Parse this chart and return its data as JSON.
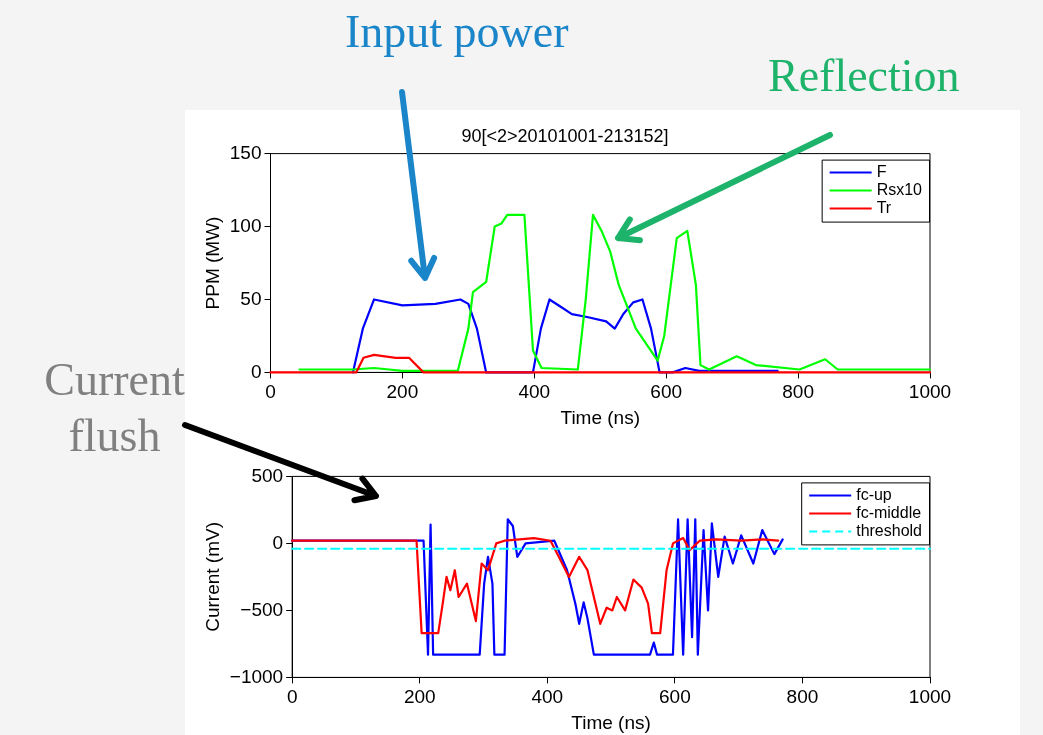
{
  "chart_data": [
    {
      "type": "line",
      "title": "90[<2>20101001-213152]",
      "xlabel": "Time (ns)",
      "ylabel": "PPM (MW)",
      "xlim": [
        0,
        1000
      ],
      "xticks": [
        0,
        200,
        400,
        600,
        800,
        1000
      ],
      "ylim": [
        0,
        150
      ],
      "yticks": [
        0,
        50,
        100,
        150
      ],
      "legend": "top right",
      "grid": false,
      "marker": "none",
      "line_style": "solid",
      "annotations": [
        "Input power",
        "Reflection"
      ],
      "series": [
        {
          "name": "F",
          "color": "#0000ff",
          "x": [
            125,
            140,
            157,
            200,
            250,
            288,
            300,
            313,
            327,
            398,
            410,
            423,
            440,
            457,
            480,
            509,
            522,
            535,
            550,
            564,
            577,
            590,
            610,
            629,
            650,
            700,
            769
          ],
          "values": [
            0,
            30,
            50,
            46,
            47,
            50,
            47,
            30,
            0,
            0,
            30,
            50,
            45,
            40,
            38,
            35,
            30,
            40,
            48,
            50,
            30,
            0,
            0,
            3,
            1,
            1,
            1
          ]
        },
        {
          "name": "Rsx10",
          "color": "#00ff00",
          "x": [
            44,
            125,
            157,
            180,
            200,
            284,
            300,
            307,
            327,
            340,
            350,
            359,
            385,
            398,
            411,
            466,
            478,
            489,
            502,
            515,
            528,
            554,
            587,
            597,
            616,
            632,
            645,
            652,
            665,
            707,
            736,
            802,
            841,
            860,
            1000
          ],
          "values": [
            2,
            2,
            3,
            2,
            1,
            1,
            30,
            55,
            62,
            100,
            102,
            108,
            108,
            15,
            3,
            2,
            50,
            108,
            97,
            83,
            60,
            30,
            8,
            25,
            92,
            97,
            60,
            5,
            2,
            11,
            5,
            2,
            9,
            2,
            2
          ]
        },
        {
          "name": "Tr",
          "color": "#ff0000",
          "x": [
            0,
            130,
            141,
            157,
            190,
            210,
            232,
            1000
          ],
          "values": [
            0,
            0,
            10,
            12,
            10,
            10,
            0,
            0
          ]
        }
      ]
    },
    {
      "type": "line",
      "xlabel": "Time (ns)",
      "ylabel": "Current (mV)",
      "xlim": [
        0,
        1000
      ],
      "xticks": [
        0,
        200,
        400,
        600,
        800,
        1000
      ],
      "ylim": [
        -1000,
        500
      ],
      "yticks": [
        -1000,
        -500,
        0,
        500
      ],
      "legend": "top right",
      "grid": false,
      "marker": "none",
      "line_style": "solid",
      "annotations": [
        "Current flush"
      ],
      "series": [
        {
          "name": "fc-up",
          "color": "#0000ff",
          "x": [
            0,
            206,
            213,
            217,
            221,
            294,
            301,
            307,
            314,
            317,
            333,
            338,
            346,
            353,
            366,
            411,
            431,
            444,
            450,
            457,
            463,
            473,
            561,
            567,
            572,
            597,
            605,
            613,
            620,
            627,
            632,
            636,
            645,
            652,
            658,
            668,
            678,
            691,
            704,
            723,
            737,
            756,
            769
          ],
          "values": [
            20,
            20,
            -830,
            140,
            -830,
            -830,
            -300,
            -100,
            -300,
            -830,
            -830,
            180,
            130,
            -100,
            0,
            20,
            -200,
            -450,
            -600,
            -440,
            -560,
            -830,
            -830,
            -740,
            -830,
            -830,
            180,
            -830,
            180,
            -700,
            180,
            -830,
            100,
            -500,
            150,
            -250,
            50,
            -150,
            60,
            -150,
            100,
            -80,
            30
          ]
        },
        {
          "name": "fc-middle",
          "color": "#ff0000",
          "x": [
            0,
            195,
            203,
            229,
            236,
            242,
            248,
            255,
            261,
            274,
            288,
            297,
            307,
            320,
            333,
            379,
            405,
            418,
            434,
            450,
            463,
            483,
            493,
            502,
            509,
            522,
            535,
            548,
            558,
            564,
            577,
            587,
            597,
            613,
            623,
            639,
            665,
            704,
            737,
            762
          ],
          "values": [
            20,
            20,
            -670,
            -670,
            -450,
            -250,
            -350,
            -200,
            -400,
            -300,
            -580,
            -150,
            -200,
            0,
            20,
            40,
            20,
            -100,
            -250,
            -100,
            -200,
            -600,
            -480,
            -500,
            -400,
            -500,
            -270,
            -330,
            -450,
            -670,
            -670,
            -200,
            0,
            40,
            -50,
            20,
            30,
            20,
            30,
            20
          ]
        },
        {
          "name": "threshold",
          "color": "#00ffff",
          "line_style": "dashed",
          "x": [
            0,
            1000
          ],
          "values": [
            -40,
            -40
          ]
        }
      ]
    }
  ]
}
